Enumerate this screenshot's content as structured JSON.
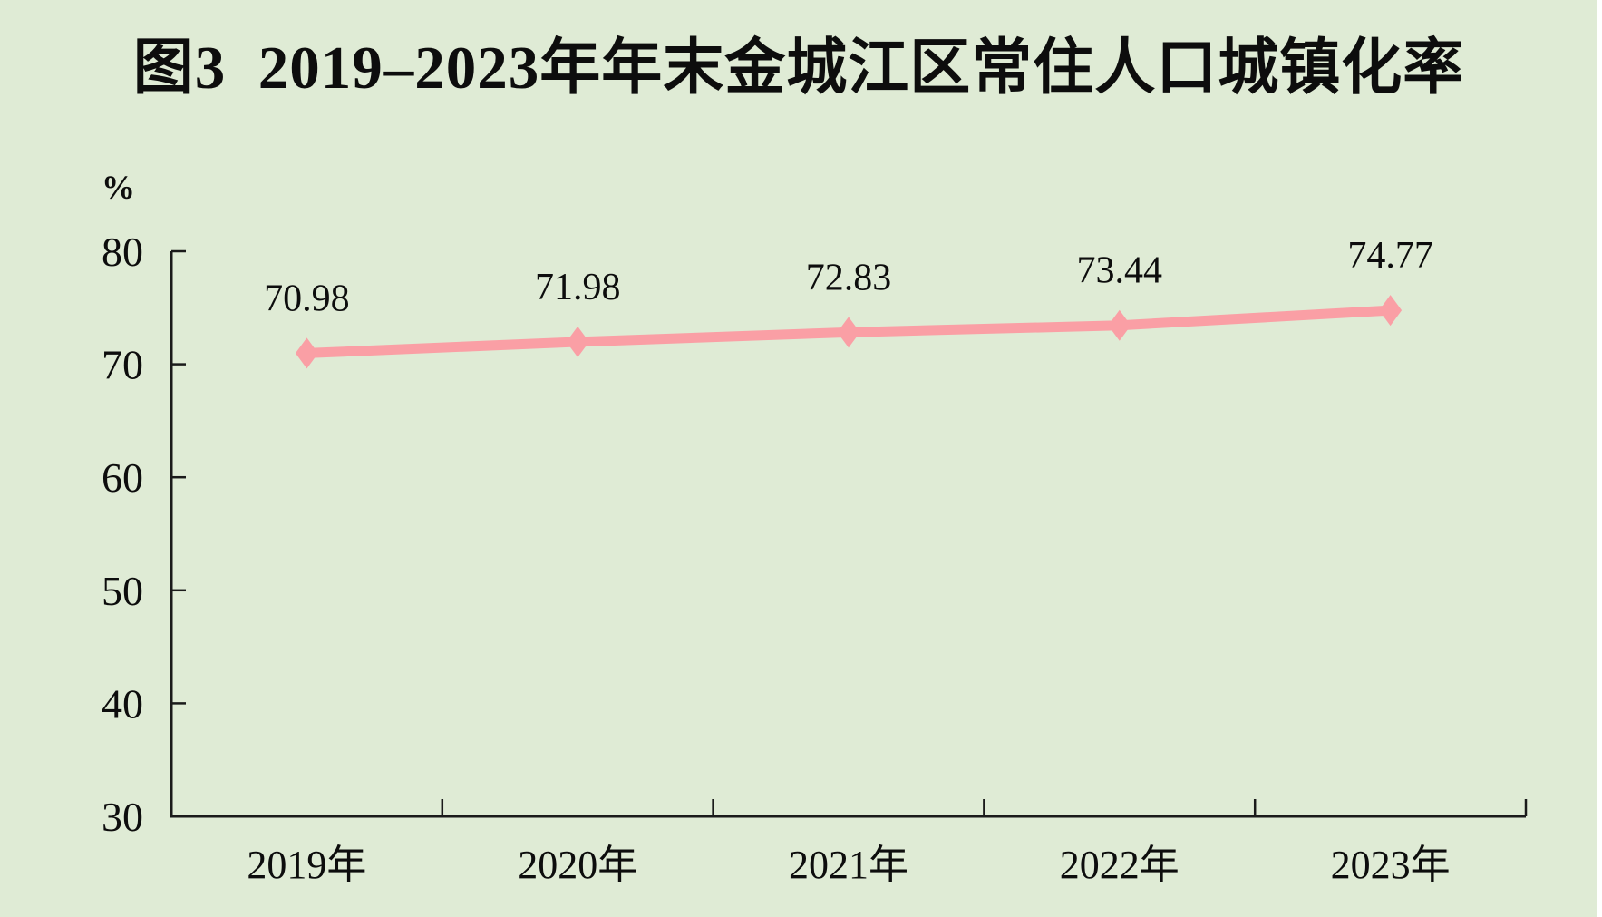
{
  "title": "图3  2019–2023年年末金城江区常住人口城镇化率",
  "y_axis_unit": "%",
  "chart_data": {
    "type": "line",
    "title": "图3  2019–2023年年末金城江区常住人口城镇化率",
    "categories": [
      "2019年",
      "2020年",
      "2021年",
      "2022年",
      "2023年"
    ],
    "values": [
      70.98,
      71.98,
      72.83,
      73.44,
      74.77
    ],
    "data_labels": [
      "70.98",
      "71.98",
      "72.83",
      "73.44",
      "74.77"
    ],
    "xlabel": "",
    "ylabel": "%",
    "ylim": [
      30,
      80
    ],
    "y_ticks": [
      30,
      40,
      50,
      60,
      70,
      80
    ],
    "grid": false,
    "legend": "none",
    "marker": "diamond",
    "line_color": "#FA9FA5",
    "axis_color": "#1a1a1a",
    "text_color": "#0d0d0d",
    "background_color": "#DFEBD5"
  }
}
